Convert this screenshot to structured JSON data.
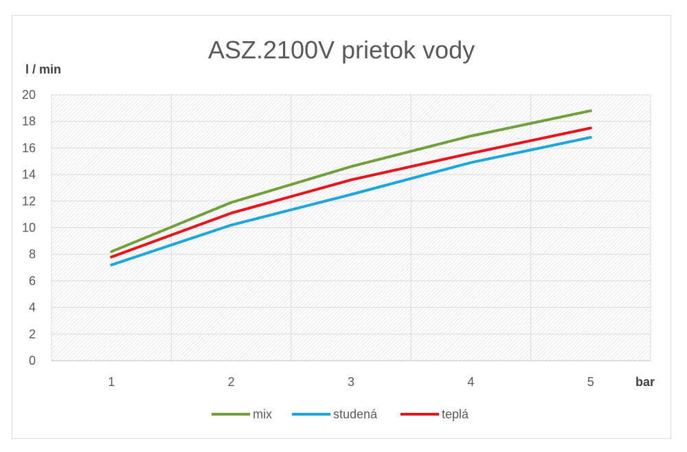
{
  "chart_data": {
    "type": "line",
    "title": "ASZ.2100V prietok vody",
    "xlabel": "bar",
    "ylabel": "l / min",
    "categories": [
      "1",
      "2",
      "3",
      "4",
      "5"
    ],
    "ylim": [
      0,
      20
    ],
    "yticks": [
      0,
      2,
      4,
      6,
      8,
      10,
      12,
      14,
      16,
      18,
      20
    ],
    "grid": true,
    "legend_position": "bottom",
    "series": [
      {
        "name": "mix",
        "color": "#70a03a",
        "values": [
          8.2,
          11.9,
          14.6,
          16.9,
          18.8
        ]
      },
      {
        "name": "studená",
        "color": "#1aa7e0",
        "values": [
          7.2,
          10.2,
          12.5,
          14.9,
          16.8
        ]
      },
      {
        "name": "teplá",
        "color": "#e8141b",
        "values": [
          7.8,
          11.1,
          13.6,
          15.6,
          17.5
        ]
      }
    ]
  }
}
